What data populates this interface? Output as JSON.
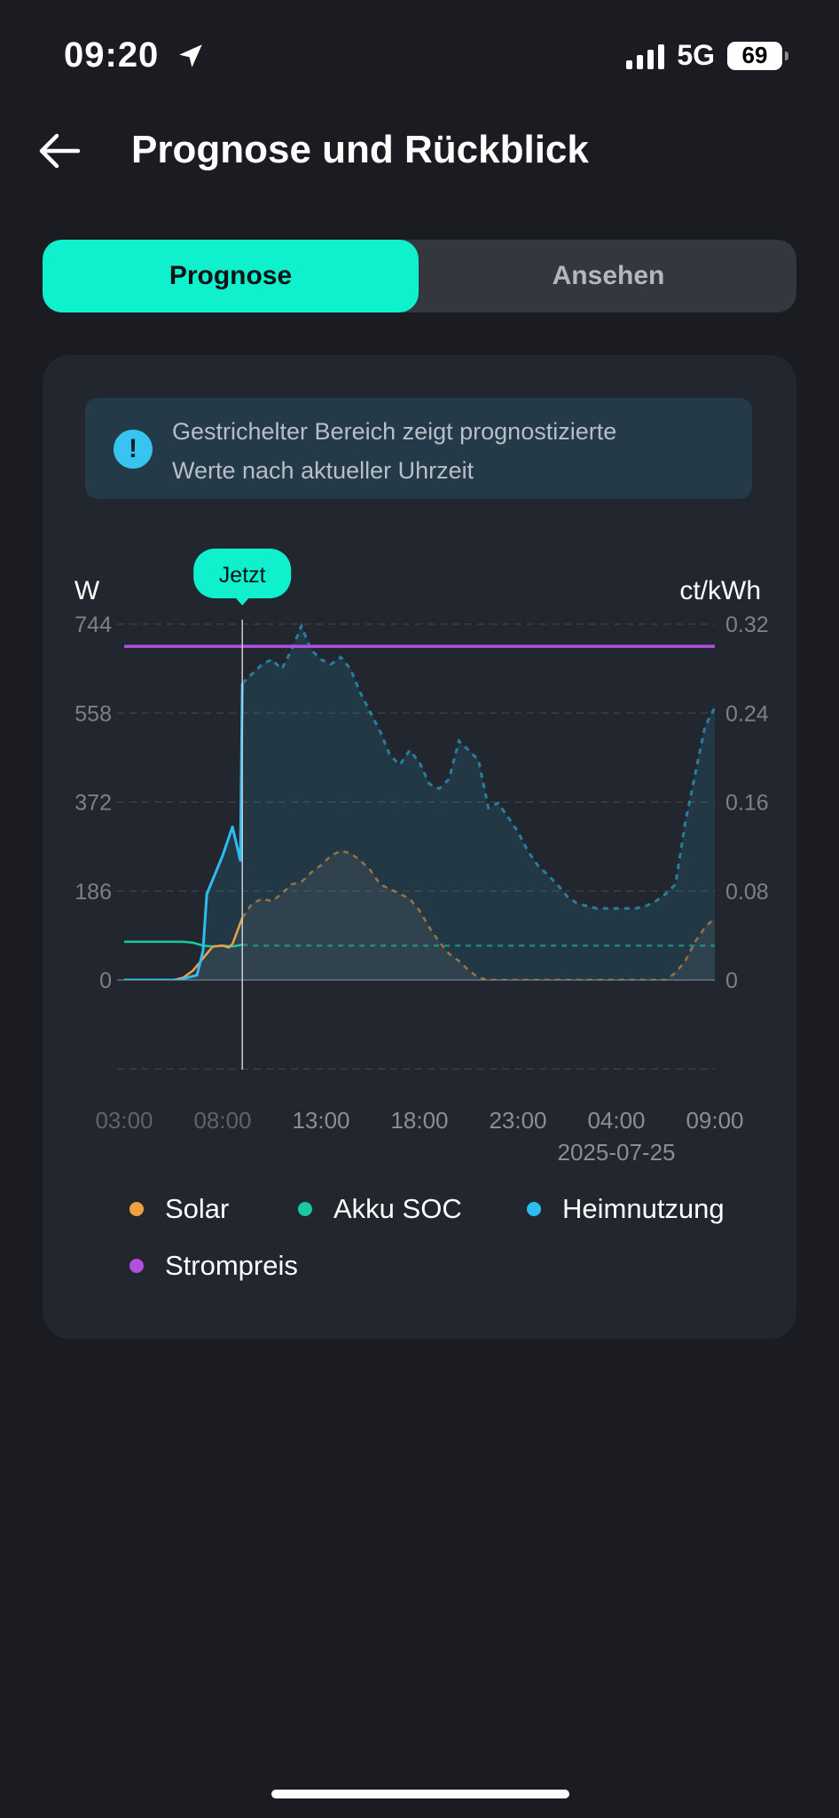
{
  "status": {
    "time": "09:20",
    "network": "5G",
    "battery": "69"
  },
  "header": {
    "title": "Prognose und Rückblick"
  },
  "tabs": [
    {
      "label": "Prognose",
      "active": true
    },
    {
      "label": "Ansehen",
      "active": false
    }
  ],
  "info": {
    "line1": "Gestrichelter Bereich zeigt prognostizierte",
    "line2": "Werte nach aktueller Uhrzeit"
  },
  "colors": {
    "accent": "#0ff0cc",
    "solar": "#f0a042",
    "soc": "#19c9a4",
    "home": "#2ebdf2",
    "price": "#b24fe0"
  },
  "chart_data": {
    "type": "line",
    "y_left_unit": "W",
    "y_right_unit": "ct/kWh",
    "y_left_ticks": [
      "744",
      "558",
      "372",
      "186",
      "0"
    ],
    "y_right_ticks": [
      "0.32",
      "0.24",
      "0.16",
      "0.08",
      "0"
    ],
    "ylim_left": [
      0,
      744
    ],
    "ylim_right": [
      0,
      0.32
    ],
    "x_ticks": [
      "03:00",
      "08:00",
      "13:00",
      "18:00",
      "23:00",
      "04:00",
      "09:00"
    ],
    "x_tick_sublabel": "2025-07-25",
    "x_range_hours": [
      3,
      33
    ],
    "now_hour": 9,
    "now_label": "Jetzt",
    "grid": true,
    "legend_position": "bottom",
    "series": [
      {
        "name": "Solar",
        "key": "solar",
        "axis": "left",
        "points": [
          [
            3,
            0
          ],
          [
            5.5,
            0
          ],
          [
            6,
            5
          ],
          [
            6.5,
            20
          ],
          [
            7,
            45
          ],
          [
            7.5,
            70
          ],
          [
            8,
            72
          ],
          [
            8.3,
            68
          ],
          [
            8.5,
            75
          ],
          [
            9,
            130
          ],
          [
            9.5,
            160
          ],
          [
            10,
            170
          ],
          [
            10.5,
            165
          ],
          [
            11,
            180
          ],
          [
            11.5,
            200
          ],
          [
            12,
            205
          ],
          [
            12.5,
            225
          ],
          [
            13,
            240
          ],
          [
            13.5,
            260
          ],
          [
            14,
            270
          ],
          [
            14.5,
            265
          ],
          [
            15,
            250
          ],
          [
            15.5,
            230
          ],
          [
            16,
            200
          ],
          [
            16.5,
            190
          ],
          [
            17,
            180
          ],
          [
            17.5,
            170
          ],
          [
            18,
            145
          ],
          [
            18.5,
            110
          ],
          [
            19,
            80
          ],
          [
            19.5,
            55
          ],
          [
            20,
            40
          ],
          [
            20.5,
            20
          ],
          [
            21,
            5
          ],
          [
            21.5,
            0
          ],
          [
            30.5,
            0
          ],
          [
            31,
            15
          ],
          [
            31.5,
            40
          ],
          [
            32,
            80
          ],
          [
            32.5,
            110
          ],
          [
            33,
            130
          ]
        ]
      },
      {
        "name": "Akku SOC",
        "key": "soc",
        "axis": "left",
        "points": [
          [
            3,
            80
          ],
          [
            6,
            80
          ],
          [
            6.5,
            78
          ],
          [
            7,
            72
          ],
          [
            7.5,
            70
          ],
          [
            8,
            72
          ],
          [
            8.5,
            70
          ],
          [
            9,
            74
          ],
          [
            9.5,
            72
          ],
          [
            10,
            72
          ],
          [
            12,
            72
          ],
          [
            33,
            72
          ]
        ]
      },
      {
        "name": "Heimnutzung",
        "key": "home",
        "axis": "left",
        "points": [
          [
            3,
            0
          ],
          [
            5.9,
            0
          ],
          [
            6.2,
            5
          ],
          [
            6.7,
            10
          ],
          [
            7,
            60
          ],
          [
            7.2,
            180
          ],
          [
            7.5,
            210
          ],
          [
            8,
            260
          ],
          [
            8.5,
            320
          ],
          [
            8.9,
            250
          ],
          [
            9,
            620
          ],
          [
            9.5,
            640
          ],
          [
            10,
            660
          ],
          [
            10.5,
            670
          ],
          [
            11,
            650
          ],
          [
            11.5,
            690
          ],
          [
            12,
            740
          ],
          [
            12.5,
            690
          ],
          [
            13,
            670
          ],
          [
            13.5,
            660
          ],
          [
            14,
            675
          ],
          [
            14.5,
            650
          ],
          [
            15,
            600
          ],
          [
            15.5,
            560
          ],
          [
            16,
            520
          ],
          [
            16.5,
            470
          ],
          [
            17,
            450
          ],
          [
            17.5,
            480
          ],
          [
            18,
            455
          ],
          [
            18.5,
            410
          ],
          [
            19,
            400
          ],
          [
            19.5,
            420
          ],
          [
            20,
            500
          ],
          [
            20.5,
            480
          ],
          [
            21,
            460
          ],
          [
            21.5,
            360
          ],
          [
            22,
            370
          ],
          [
            22.5,
            340
          ],
          [
            23,
            310
          ],
          [
            23.5,
            270
          ],
          [
            24,
            240
          ],
          [
            24.5,
            220
          ],
          [
            25,
            200
          ],
          [
            25.5,
            175
          ],
          [
            26,
            160
          ],
          [
            26.5,
            155
          ],
          [
            27,
            150
          ],
          [
            28,
            150
          ],
          [
            29,
            150
          ],
          [
            29.5,
            155
          ],
          [
            30,
            165
          ],
          [
            30.5,
            180
          ],
          [
            31,
            200
          ],
          [
            31.5,
            330
          ],
          [
            32,
            430
          ],
          [
            32.5,
            530
          ],
          [
            33,
            570
          ],
          [
            33.5,
            660
          ]
        ]
      },
      {
        "name": "Strompreis",
        "key": "price",
        "axis": "right",
        "points": [
          [
            3,
            0.3
          ],
          [
            33,
            0.3
          ]
        ]
      }
    ]
  }
}
